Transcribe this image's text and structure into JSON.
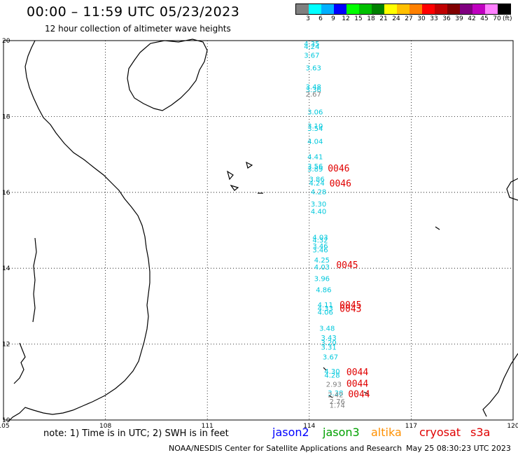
{
  "header": {
    "title": "00:00 – 11:59 UTC 05/23/2023",
    "subtitle": "12 hour collection of altimeter wave heights"
  },
  "scale": {
    "colors": [
      "#808080",
      "#00ffff",
      "#00b0ff",
      "#0000ff",
      "#00ff00",
      "#00c000",
      "#008000",
      "#ffff00",
      "#ffc000",
      "#ff8000",
      "#ff0000",
      "#c00000",
      "#800000",
      "#800080",
      "#c000c0",
      "#ff80ff",
      "#000000"
    ],
    "labels": [
      "3",
      "6",
      "9",
      "12",
      "15",
      "18",
      "21",
      "24",
      "27",
      "30",
      "33",
      "36",
      "39",
      "42",
      "45",
      "70"
    ],
    "unit": "(ft)"
  },
  "axes": {
    "lat_labels": [
      "20",
      "18",
      "16",
      "14",
      "12",
      "10"
    ],
    "lon_labels": [
      "105",
      "108",
      "111",
      "114",
      "117",
      "120"
    ]
  },
  "map_data": {
    "lat_range": [
      10,
      20
    ],
    "lon_range": [
      105,
      120
    ],
    "swh": [
      {
        "t": "4.35",
        "lat": 19.85,
        "lon": 114.05,
        "c": "#00c8dc"
      },
      {
        "t": "4.24",
        "lat": 19.78,
        "lon": 114.05,
        "c": "#00c8dc"
      },
      {
        "t": "3.67",
        "lat": 19.55,
        "lon": 114.05,
        "c": "#00c8dc"
      },
      {
        "t": "3.63",
        "lat": 19.22,
        "lon": 114.1,
        "c": "#00c8dc"
      },
      {
        "t": "3.48",
        "lat": 18.72,
        "lon": 114.1,
        "c": "#00c8dc"
      },
      {
        "t": "3.36",
        "lat": 18.64,
        "lon": 114.1,
        "c": "#00c8dc"
      },
      {
        "t": "2.67",
        "lat": 18.52,
        "lon": 114.1,
        "c": "#808080"
      },
      {
        "t": "3.06",
        "lat": 18.05,
        "lon": 114.15,
        "c": "#00c8dc"
      },
      {
        "t": "3.10",
        "lat": 17.68,
        "lon": 114.15,
        "c": "#00c8dc"
      },
      {
        "t": "3.54",
        "lat": 17.62,
        "lon": 114.15,
        "c": "#00c8dc"
      },
      {
        "t": "4.04",
        "lat": 17.28,
        "lon": 114.15,
        "c": "#00c8dc"
      },
      {
        "t": "4.41",
        "lat": 16.87,
        "lon": 114.15,
        "c": "#00c8dc"
      },
      {
        "t": "3.56",
        "lat": 16.62,
        "lon": 114.15,
        "c": "#00c8dc"
      },
      {
        "t": "3.89",
        "lat": 16.55,
        "lon": 114.15,
        "c": "#00c8dc"
      },
      {
        "t": "3.86",
        "lat": 16.28,
        "lon": 114.2,
        "c": "#00c8dc"
      },
      {
        "t": "4.24",
        "lat": 16.18,
        "lon": 114.2,
        "c": "#00c8dc"
      },
      {
        "t": "4.28",
        "lat": 15.95,
        "lon": 114.25,
        "c": "#00c8dc"
      },
      {
        "t": "3.30",
        "lat": 15.63,
        "lon": 114.25,
        "c": "#00c8dc"
      },
      {
        "t": "4.40",
        "lat": 15.43,
        "lon": 114.25,
        "c": "#00c8dc"
      },
      {
        "t": "4.03",
        "lat": 14.75,
        "lon": 114.3,
        "c": "#00c8dc"
      },
      {
        "t": "4.32",
        "lat": 14.68,
        "lon": 114.3,
        "c": "#00c8dc"
      },
      {
        "t": "3.46",
        "lat": 14.52,
        "lon": 114.3,
        "c": "#00c8dc"
      },
      {
        "t": "3.46",
        "lat": 14.42,
        "lon": 114.3,
        "c": "#00c8dc"
      },
      {
        "t": "4.25",
        "lat": 14.15,
        "lon": 114.35,
        "c": "#00c8dc"
      },
      {
        "t": "4.03",
        "lat": 13.97,
        "lon": 114.35,
        "c": "#00c8dc"
      },
      {
        "t": "3.96",
        "lat": 13.66,
        "lon": 114.35,
        "c": "#00c8dc"
      },
      {
        "t": "4.86",
        "lat": 13.37,
        "lon": 114.4,
        "c": "#00c8dc"
      },
      {
        "t": "4.11",
        "lat": 12.97,
        "lon": 114.45,
        "c": "#00c8dc"
      },
      {
        "t": "4.33",
        "lat": 12.88,
        "lon": 114.45,
        "c": "#00c8dc"
      },
      {
        "t": "4.06",
        "lat": 12.78,
        "lon": 114.45,
        "c": "#00c8dc"
      },
      {
        "t": "3.48",
        "lat": 12.35,
        "lon": 114.5,
        "c": "#00c8dc"
      },
      {
        "t": "3.43",
        "lat": 12.1,
        "lon": 114.55,
        "c": "#00c8dc"
      },
      {
        "t": "3.20",
        "lat": 11.97,
        "lon": 114.55,
        "c": "#00c8dc"
      },
      {
        "t": "3.31",
        "lat": 11.85,
        "lon": 114.55,
        "c": "#00c8dc"
      },
      {
        "t": "3.67",
        "lat": 11.6,
        "lon": 114.6,
        "c": "#00c8dc"
      },
      {
        "t": "4.30",
        "lat": 11.22,
        "lon": 114.65,
        "c": "#00c8dc"
      },
      {
        "t": "4.28",
        "lat": 11.12,
        "lon": 114.65,
        "c": "#00c8dc"
      },
      {
        "t": "2.93",
        "lat": 10.88,
        "lon": 114.7,
        "c": "#808080"
      },
      {
        "t": "3.38",
        "lat": 10.65,
        "lon": 114.75,
        "c": "#00c8dc"
      },
      {
        "t": "2.42",
        "lat": 10.6,
        "lon": 114.75,
        "c": "#808080"
      },
      {
        "t": "2.76",
        "lat": 10.42,
        "lon": 114.8,
        "c": "#808080"
      },
      {
        "t": "1.74",
        "lat": 10.32,
        "lon": 114.8,
        "c": "#808080"
      }
    ],
    "times": [
      {
        "t": "0046",
        "lat": 16.55,
        "lon": 114.75
      },
      {
        "t": "0046",
        "lat": 16.15,
        "lon": 114.8
      },
      {
        "t": "0045",
        "lat": 14.0,
        "lon": 115.0
      },
      {
        "t": "0045",
        "lat": 12.95,
        "lon": 115.1
      },
      {
        "t": "0043",
        "lat": 12.85,
        "lon": 115.1
      },
      {
        "t": "0044",
        "lat": 11.18,
        "lon": 115.3
      },
      {
        "t": "0044",
        "lat": 10.88,
        "lon": 115.3
      },
      {
        "t": "0044",
        "lat": 10.6,
        "lon": 115.35
      }
    ],
    "time_color": "#e00000"
  },
  "footer": {
    "note": "note:  1) Time is in UTC;  2) SWH is in feet",
    "satellites": [
      {
        "name": "jason2",
        "color": "#0000ff"
      },
      {
        "name": "jason3",
        "color": "#00a000"
      },
      {
        "name": "altika",
        "color": "#ff9000"
      },
      {
        "name": "cryosat",
        "color": "#e00000"
      },
      {
        "name": "s3a",
        "color": "#e00000"
      }
    ],
    "credit_left": "NOAA/NESDIS Center for Satellite Applications and Research",
    "credit_right": "May 25 08:30:23 UTC 2023"
  }
}
